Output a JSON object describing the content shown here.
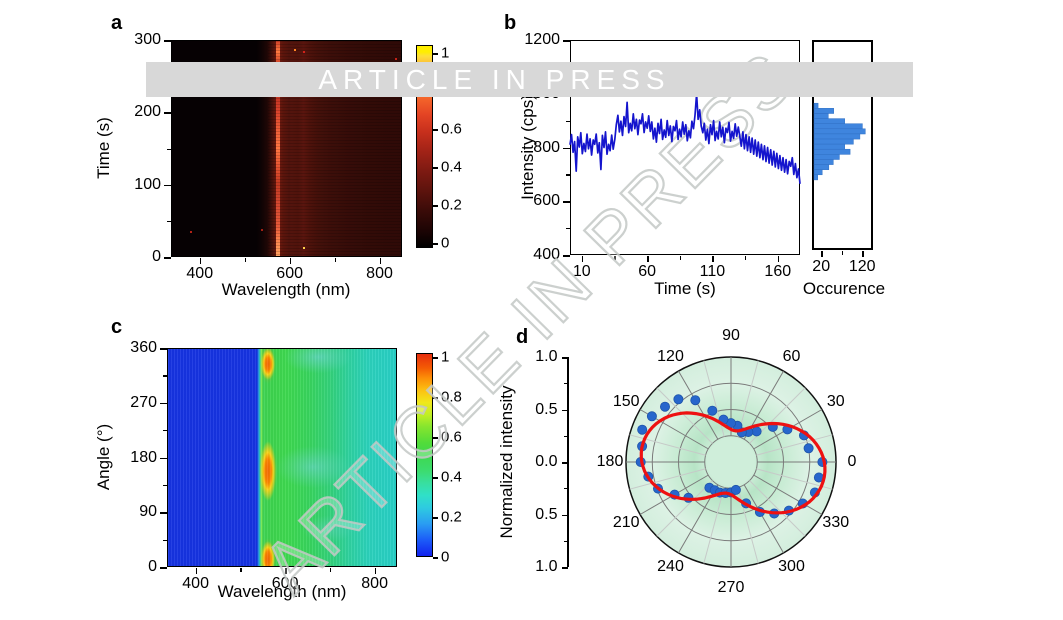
{
  "banner": {
    "text": "ARTICLE IN PRESS",
    "bg": "#d8d8d8",
    "text_color": "#ffffff"
  },
  "watermark": {
    "text": "ARTICLE IN PRESS"
  },
  "colors": {
    "trace_blue": "#1414cd",
    "hist_blue": "#3f85de",
    "dot_blue": "#2766cc",
    "fit_red": "#ee1111",
    "grid_gray": "#7a7a7a",
    "grid_light": "#c6cac8"
  },
  "panels": {
    "a": {
      "letter": "a",
      "xlabel": "Wavelength (nm)",
      "ylabel": "Time (s)",
      "xticks": [
        400,
        600,
        800
      ],
      "xminor": [
        500,
        700
      ],
      "yticks": [
        300,
        200,
        100,
        0
      ],
      "yminor": [
        250,
        150,
        50
      ],
      "colorbar_labels": [
        "1",
        "0.8",
        "0.6",
        "0.4",
        "0.2",
        "0"
      ]
    },
    "b": {
      "letter": "b",
      "xlabel": "Time (s)",
      "ylabel": "Intensity (cps)",
      "xticks": [
        10,
        60,
        110,
        160
      ],
      "xminor": [
        35,
        85,
        135
      ],
      "yticks": [
        1200,
        1000,
        800,
        600,
        400
      ],
      "yminor": [
        1100,
        900,
        700,
        500
      ],
      "hist_xlabel": "Occurence",
      "hist_xticks": [
        20,
        120
      ],
      "hist_xminor": [
        70
      ]
    },
    "c": {
      "letter": "c",
      "xlabel": "Wavelength (nm)",
      "ylabel": "Angle (°)",
      "xticks": [
        400,
        600,
        800
      ],
      "xminor": [
        500,
        700
      ],
      "yticks": [
        360,
        270,
        180,
        90,
        0
      ],
      "yminor": [
        315,
        225,
        135,
        45
      ],
      "colorbar_labels": [
        "1",
        "0.8",
        "0.6",
        "0.4",
        "0.2",
        "0"
      ]
    },
    "d": {
      "letter": "d",
      "rlabel": "Normalized intensity",
      "rtick_labels": [
        "1.0",
        "0.5",
        "0.0",
        "0.5",
        "1.0"
      ],
      "angle_labels": [
        0,
        30,
        60,
        90,
        120,
        150,
        180,
        210,
        240,
        270,
        300,
        330
      ]
    }
  },
  "chart_data": [
    {
      "id": "a",
      "type": "heatmap",
      "xlabel": "Wavelength (nm)",
      "ylabel": "Time (s)",
      "x_range_nm": [
        336,
        850
      ],
      "y_range_s": [
        0,
        300
      ],
      "value_range": [
        0,
        1
      ],
      "colormap": "hot (black-red-orange-yellow)",
      "colorbar_ticks": [
        0,
        0.2,
        0.4,
        0.6,
        0.8,
        1
      ],
      "features": {
        "dark_below_nm": 545,
        "bright_emission_line_nm": 580,
        "broad_red_band_nm": [
          585,
          700
        ],
        "weak_tail_to_nm": 850
      }
    },
    {
      "id": "b",
      "type": "line+histogram",
      "xlabel": "Time (s)",
      "ylabel": "Intensity (cps)",
      "x_range_s": [
        1,
        177
      ],
      "y_range_cps": [
        400,
        1200
      ],
      "trace": {
        "t_start": 1,
        "t_step": 1.1812,
        "y": [
          810,
          848,
          782,
          822,
          712,
          840,
          802,
          855,
          777,
          815,
          785,
          850,
          795,
          832,
          772,
          828,
          812,
          850,
          780,
          818,
          718,
          845,
          800,
          858,
          775,
          812,
          788,
          846,
          794,
          830,
          885,
          920,
          858,
          898,
          845,
          915,
          878,
          968,
          855,
          890,
          862,
          925,
          870,
          905,
          848,
          902,
          888,
          925,
          856,
          895,
          872,
          918,
          860,
          895,
          832,
          872,
          820,
          890,
          852,
          905,
          830,
          865,
          838,
          900,
          845,
          880,
          822,
          878,
          862,
          900,
          830,
          868,
          840,
          895,
          850,
          885,
          825,
          862,
          836,
          898,
          870,
          920,
          1000,
          905,
          940,
          880,
          855,
          890,
          828,
          868,
          815,
          885,
          848,
          900,
          826,
          860,
          832,
          895,
          840,
          875,
          818,
          872,
          856,
          893,
          824,
          860,
          834,
          888,
          842,
          876,
          842,
          805,
          858,
          795,
          848,
          788,
          840,
          782,
          835,
          775,
          828,
          768,
          820,
          762,
          812,
          755,
          806,
          748,
          800,
          742,
          792,
          735,
          786,
          728,
          778,
          722,
          770,
          715,
          762,
          708,
          755,
          702,
          748,
          730,
          762,
          700,
          740,
          688,
          720,
          665
        ]
      },
      "histogram": {
        "xlabel": "Occurence",
        "xticks": [
          20,
          120
        ],
        "orientation": "horizontal",
        "bin_top_cps": 955,
        "bin_step_cps": 19,
        "counts": [
          10,
          48,
          35,
          75,
          118,
          125,
          112,
          96,
          75,
          88,
          62,
          47,
          36,
          20,
          9
        ]
      }
    },
    {
      "id": "c",
      "type": "heatmap",
      "xlabel": "Wavelength (nm)",
      "ylabel": "Angle (°)",
      "x_range_nm": [
        336,
        850
      ],
      "y_range_deg": [
        0,
        360
      ],
      "value_range": [
        0,
        1
      ],
      "colormap": "jet",
      "colorbar_ticks": [
        0,
        0.2,
        0.4,
        0.6,
        0.8,
        1
      ],
      "features": {
        "blue_below_nm": 545,
        "hotspot_wavelength_nm": 560,
        "hotspot_angles_deg": [
          15,
          160,
          335
        ],
        "green_band_nm": [
          570,
          800
        ],
        "cyan_beyond_nm": 800
      }
    },
    {
      "id": "d",
      "type": "polar",
      "rlabel": "Normalized intensity",
      "r_range": [
        0,
        1
      ],
      "grid_circles": [
        0.25,
        0.5,
        0.75,
        1.0
      ],
      "spoke_step_deg": 15,
      "major_spoke_step_deg": 30,
      "dots": {
        "angle_step_deg": 10,
        "angles_start_deg": 0,
        "r": [
          0.87,
          0.75,
          0.74,
          0.62,
          0.52,
          0.38,
          0.33,
          0.3,
          0.35,
          0.37,
          0.41,
          0.52,
          0.68,
          0.78,
          0.82,
          0.87,
          0.9,
          0.86,
          0.86,
          0.8,
          0.74,
          0.62,
          0.53,
          0.32,
          0.31,
          0.31,
          0.3,
          0.29,
          0.27,
          0.42,
          0.55,
          0.64,
          0.72,
          0.79,
          0.85,
          0.85
        ]
      },
      "fit": {
        "model": "r = r0 + A*cos^2(theta - axis)",
        "r0": 0.3,
        "amp_right": 0.6,
        "amp_left": 0.56,
        "axis_deg": 352
      }
    }
  ]
}
